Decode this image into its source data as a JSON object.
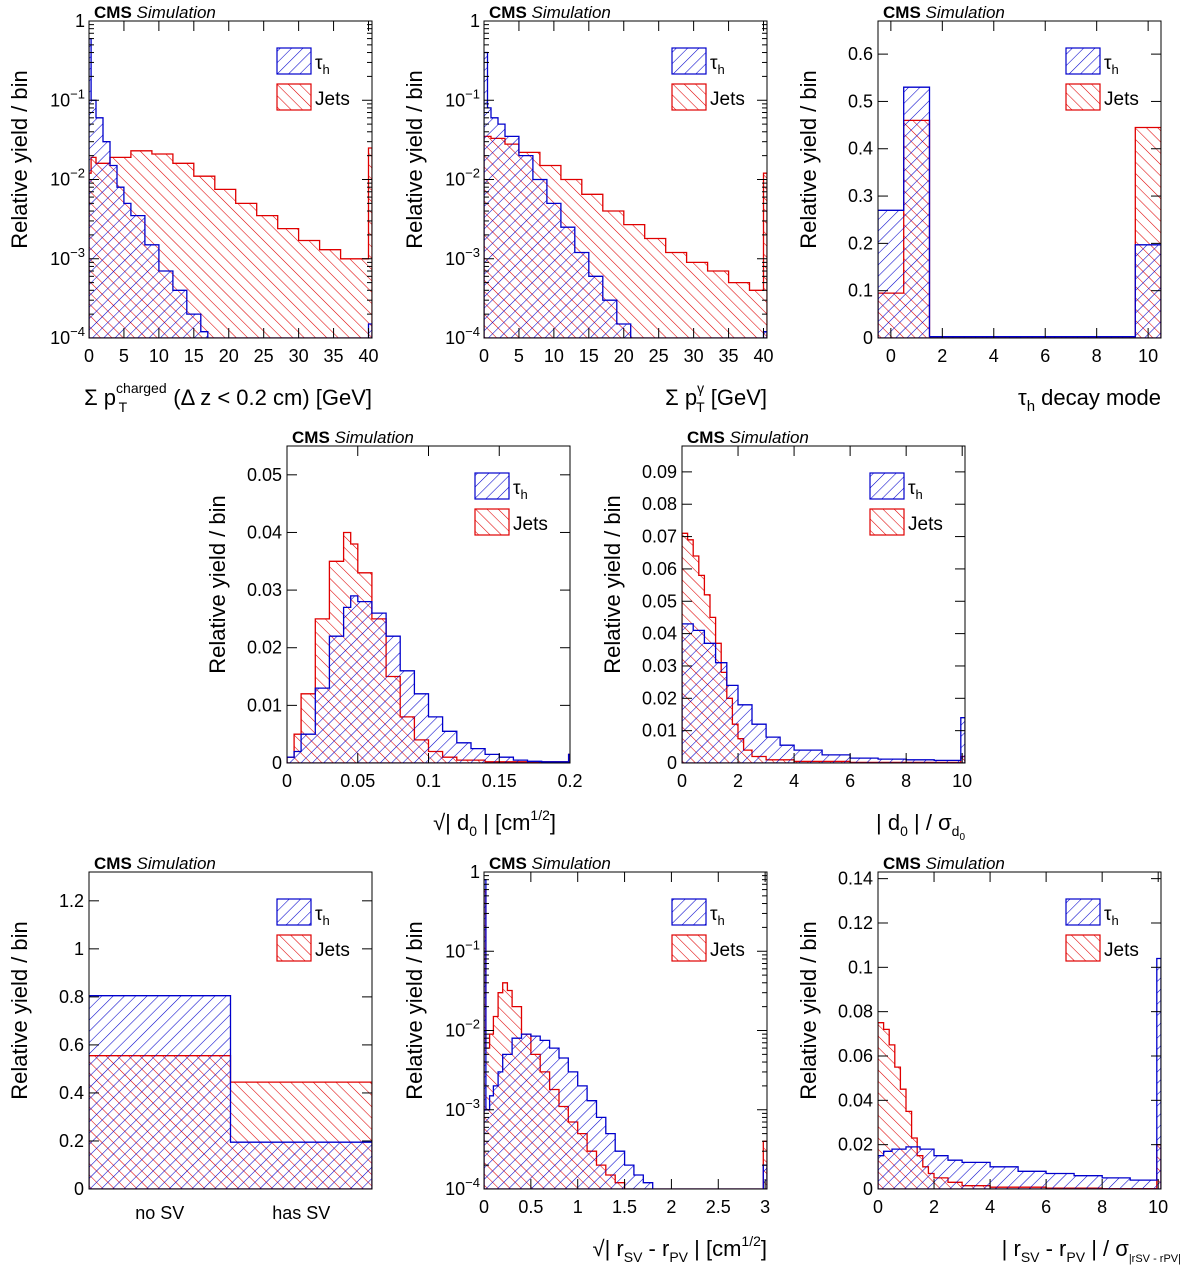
{
  "figure": {
    "cms_label": "CMS",
    "sim_label": "Simulation"
  },
  "legend": {
    "tau": "τh",
    "jets": "Jets"
  },
  "colors": {
    "tau": "#0000cc",
    "jets": "#e00000"
  },
  "chart_data": [
    {
      "id": "p1",
      "type": "histogram",
      "log": true,
      "ylabel": "Relative yield / bin",
      "xlabel": "Σ p_T^charged (Δ z < 0.2 cm) [GeV]",
      "xlim": [
        0,
        40.5
      ],
      "ylim": [
        0.0001,
        1
      ],
      "xticks": [
        0,
        5,
        10,
        15,
        20,
        25,
        30,
        35,
        40
      ],
      "yticks": [
        {
          "v": 0.0001,
          "b": "10",
          "e": "−4"
        },
        {
          "v": 0.001,
          "b": "10",
          "e": "−3"
        },
        {
          "v": 0.01,
          "b": "10",
          "e": "−2"
        },
        {
          "v": 0.1,
          "b": "10",
          "e": "−1"
        },
        {
          "v": 1,
          "b": "1",
          "e": ""
        }
      ],
      "tau": [
        [
          0,
          0.6
        ],
        [
          0.3,
          0.1
        ],
        [
          1,
          0.06
        ],
        [
          2,
          0.03
        ],
        [
          3,
          0.015
        ],
        [
          4,
          0.008
        ],
        [
          5,
          0.005
        ],
        [
          6,
          0.0035
        ],
        [
          8,
          0.0015
        ],
        [
          10,
          0.0007
        ],
        [
          12,
          0.0004
        ],
        [
          14,
          0.0002
        ],
        [
          16,
          0.00012
        ],
        [
          17,
          0.0001
        ],
        [
          40,
          0.00015
        ]
      ],
      "jets": [
        [
          0,
          0.012
        ],
        [
          0.3,
          0.019
        ],
        [
          1,
          0.016
        ],
        [
          3,
          0.019
        ],
        [
          6,
          0.023
        ],
        [
          9,
          0.021
        ],
        [
          12,
          0.016
        ],
        [
          15,
          0.011
        ],
        [
          18,
          0.0075
        ],
        [
          21,
          0.005
        ],
        [
          24,
          0.0035
        ],
        [
          27,
          0.0024
        ],
        [
          30,
          0.0017
        ],
        [
          33,
          0.0013
        ],
        [
          36,
          0.001
        ],
        [
          39,
          0.001
        ],
        [
          40,
          0.025
        ]
      ]
    },
    {
      "id": "p2",
      "type": "histogram",
      "log": true,
      "ylabel": "Relative yield / bin",
      "xlabel": "Σ p_T^γ [GeV]",
      "xlim": [
        0,
        40.5
      ],
      "ylim": [
        0.0001,
        1
      ],
      "xticks": [
        0,
        5,
        10,
        15,
        20,
        25,
        30,
        35,
        40
      ],
      "yticks": [
        {
          "v": 0.0001,
          "b": "10",
          "e": "−4"
        },
        {
          "v": 0.001,
          "b": "10",
          "e": "−3"
        },
        {
          "v": 0.01,
          "b": "10",
          "e": "−2"
        },
        {
          "v": 0.1,
          "b": "10",
          "e": "−1"
        },
        {
          "v": 1,
          "b": "1",
          "e": ""
        }
      ],
      "tau": [
        [
          0,
          0.4
        ],
        [
          0.5,
          0.08
        ],
        [
          1,
          0.06
        ],
        [
          2,
          0.05
        ],
        [
          3,
          0.035
        ],
        [
          5,
          0.02
        ],
        [
          7,
          0.01
        ],
        [
          9,
          0.005
        ],
        [
          11,
          0.0025
        ],
        [
          13,
          0.0012
        ],
        [
          15,
          0.0006
        ],
        [
          17,
          0.0003
        ],
        [
          19,
          0.00015
        ],
        [
          21,
          0.0001
        ],
        [
          40,
          0.00012
        ]
      ],
      "jets": [
        [
          0,
          0.035
        ],
        [
          1,
          0.033
        ],
        [
          3,
          0.028
        ],
        [
          5,
          0.022
        ],
        [
          8,
          0.015
        ],
        [
          11,
          0.01
        ],
        [
          14,
          0.0065
        ],
        [
          17,
          0.004
        ],
        [
          20,
          0.0027
        ],
        [
          23,
          0.0018
        ],
        [
          26,
          0.0012
        ],
        [
          29,
          0.0009
        ],
        [
          32,
          0.0007
        ],
        [
          35,
          0.0005
        ],
        [
          38,
          0.0004
        ],
        [
          40,
          0.012
        ]
      ]
    },
    {
      "id": "p3",
      "type": "histogram",
      "log": false,
      "ylabel": "Relative yield / bin",
      "xlabel": "τh decay mode",
      "xlim": [
        -0.5,
        10.5
      ],
      "ylim": [
        0,
        0.67
      ],
      "xticks": [
        0,
        2,
        4,
        6,
        8,
        10
      ],
      "yticks": [
        0,
        0.1,
        0.2,
        0.3,
        0.4,
        0.5,
        0.6
      ],
      "tau": [
        [
          -0.5,
          0.27
        ],
        [
          0.5,
          0.53
        ],
        [
          1.5,
          0.003
        ],
        [
          9.5,
          0.197
        ]
      ],
      "jets": [
        [
          -0.5,
          0.095
        ],
        [
          0.5,
          0.46
        ],
        [
          1.5,
          0.003
        ],
        [
          9.5,
          0.445
        ]
      ],
      "edge_end": 10.5
    },
    {
      "id": "p4",
      "type": "histogram",
      "log": false,
      "ylabel": "Relative yield / bin",
      "xlabel": "√| d0 | [cm1/2]",
      "xlim": [
        0,
        0.2
      ],
      "ylim": [
        0,
        0.055
      ],
      "xticks": [
        0,
        0.05,
        0.1,
        0.15,
        0.2
      ],
      "xticklabels": [
        "0",
        "0.05",
        "0.1",
        "0.15",
        "0.2"
      ],
      "yticks": [
        0,
        0.01,
        0.02,
        0.03,
        0.04,
        0.05
      ],
      "tau": [
        [
          0,
          0.001
        ],
        [
          0.005,
          0.002
        ],
        [
          0.01,
          0.005
        ],
        [
          0.02,
          0.013
        ],
        [
          0.03,
          0.022
        ],
        [
          0.04,
          0.027
        ],
        [
          0.045,
          0.029
        ],
        [
          0.05,
          0.028
        ],
        [
          0.06,
          0.026
        ],
        [
          0.07,
          0.022
        ],
        [
          0.08,
          0.016
        ],
        [
          0.09,
          0.012
        ],
        [
          0.1,
          0.008
        ],
        [
          0.11,
          0.0055
        ],
        [
          0.12,
          0.0035
        ],
        [
          0.13,
          0.0025
        ],
        [
          0.14,
          0.0015
        ],
        [
          0.15,
          0.001
        ],
        [
          0.16,
          0.0005
        ],
        [
          0.17,
          0.0003
        ],
        [
          0.18,
          0.0002
        ],
        [
          0.199,
          0.0015
        ]
      ],
      "jets": [
        [
          0,
          0.001
        ],
        [
          0.005,
          0.005
        ],
        [
          0.01,
          0.012
        ],
        [
          0.02,
          0.025
        ],
        [
          0.03,
          0.035
        ],
        [
          0.04,
          0.04
        ],
        [
          0.045,
          0.038
        ],
        [
          0.05,
          0.033
        ],
        [
          0.06,
          0.025
        ],
        [
          0.07,
          0.015
        ],
        [
          0.08,
          0.008
        ],
        [
          0.09,
          0.004
        ],
        [
          0.1,
          0.002
        ],
        [
          0.11,
          0.001
        ],
        [
          0.12,
          0.0005
        ],
        [
          0.14,
          0.0002
        ],
        [
          0.199,
          0.0015
        ]
      ]
    },
    {
      "id": "p5",
      "type": "histogram",
      "log": false,
      "ylabel": "Relative yield / bin",
      "xlabel": "| d0 | / σd0",
      "xlim": [
        0,
        10.1
      ],
      "ylim": [
        0,
        0.098
      ],
      "xticks": [
        0,
        2,
        4,
        6,
        8,
        10
      ],
      "yticks": [
        0,
        0.01,
        0.02,
        0.03,
        0.04,
        0.05,
        0.06,
        0.07,
        0.08,
        0.09
      ],
      "tau": [
        [
          0,
          0.043
        ],
        [
          0.4,
          0.041
        ],
        [
          0.8,
          0.037
        ],
        [
          1.2,
          0.031
        ],
        [
          1.6,
          0.024
        ],
        [
          2,
          0.018
        ],
        [
          2.5,
          0.012
        ],
        [
          3,
          0.008
        ],
        [
          3.5,
          0.0055
        ],
        [
          4,
          0.004
        ],
        [
          5,
          0.0025
        ],
        [
          6,
          0.0015
        ],
        [
          7,
          0.0012
        ],
        [
          8,
          0.001
        ],
        [
          9,
          0.0008
        ],
        [
          9.95,
          0.014
        ]
      ],
      "jets": [
        [
          0,
          0.071
        ],
        [
          0.2,
          0.069
        ],
        [
          0.4,
          0.064
        ],
        [
          0.6,
          0.058
        ],
        [
          0.8,
          0.052
        ],
        [
          1,
          0.045
        ],
        [
          1.2,
          0.037
        ],
        [
          1.4,
          0.028
        ],
        [
          1.6,
          0.02
        ],
        [
          1.8,
          0.012
        ],
        [
          2,
          0.0075
        ],
        [
          2.2,
          0.004
        ],
        [
          2.5,
          0.002
        ],
        [
          3,
          0.001
        ],
        [
          4,
          0.0005
        ],
        [
          6,
          0.0002
        ],
        [
          9.95,
          0.002
        ]
      ]
    },
    {
      "id": "p6",
      "type": "histogram",
      "log": false,
      "ylabel": "Relative yield / bin",
      "xlabel": "",
      "xlim": [
        0,
        2
      ],
      "ylim": [
        0,
        1.32
      ],
      "categories": [
        "no SV",
        "has SV"
      ],
      "yticks": [
        0,
        0.2,
        0.4,
        0.6,
        0.8,
        1,
        1.2
      ],
      "tau": [
        [
          0,
          0.805
        ],
        [
          1,
          0.195
        ]
      ],
      "jets": [
        [
          0,
          0.555
        ],
        [
          1,
          0.445
        ]
      ],
      "edge_end": 2
    },
    {
      "id": "p7",
      "type": "histogram",
      "log": true,
      "ylabel": "Relative yield / bin",
      "xlabel": "√| rSV - rPV | [cm1/2]",
      "xlim": [
        0,
        3.02
      ],
      "ylim": [
        0.0001,
        1
      ],
      "xticks": [
        0,
        0.5,
        1,
        1.5,
        2,
        2.5,
        3
      ],
      "xticklabels": [
        "0",
        "0.5",
        "1",
        "1.5",
        "2",
        "2.5",
        "3"
      ],
      "yticks": [
        {
          "v": 0.0001,
          "b": "10",
          "e": "−4"
        },
        {
          "v": 0.001,
          "b": "10",
          "e": "−3"
        },
        {
          "v": 0.01,
          "b": "10",
          "e": "−2"
        },
        {
          "v": 0.1,
          "b": "10",
          "e": "−1"
        },
        {
          "v": 1,
          "b": "1",
          "e": ""
        }
      ],
      "tau": [
        [
          0,
          0.8
        ],
        [
          0.02,
          0.001
        ],
        [
          0.06,
          0.0015
        ],
        [
          0.1,
          0.002
        ],
        [
          0.15,
          0.003
        ],
        [
          0.2,
          0.005
        ],
        [
          0.3,
          0.008
        ],
        [
          0.4,
          0.009
        ],
        [
          0.5,
          0.0085
        ],
        [
          0.6,
          0.0075
        ],
        [
          0.7,
          0.006
        ],
        [
          0.8,
          0.0045
        ],
        [
          0.9,
          0.003
        ],
        [
          1,
          0.002
        ],
        [
          1.1,
          0.0013
        ],
        [
          1.2,
          0.0008
        ],
        [
          1.3,
          0.0005
        ],
        [
          1.4,
          0.0003
        ],
        [
          1.5,
          0.0002
        ],
        [
          1.6,
          0.00015
        ],
        [
          1.7,
          0.00012
        ],
        [
          1.8,
          0.0001
        ],
        [
          2.98,
          0.0002
        ]
      ],
      "jets": [
        [
          0,
          0.6
        ],
        [
          0.02,
          0.006
        ],
        [
          0.06,
          0.009
        ],
        [
          0.1,
          0.015
        ],
        [
          0.15,
          0.03
        ],
        [
          0.2,
          0.04
        ],
        [
          0.25,
          0.032
        ],
        [
          0.3,
          0.02
        ],
        [
          0.4,
          0.009
        ],
        [
          0.5,
          0.005
        ],
        [
          0.6,
          0.003
        ],
        [
          0.7,
          0.0018
        ],
        [
          0.8,
          0.0011
        ],
        [
          0.9,
          0.0007
        ],
        [
          1,
          0.0005
        ],
        [
          1.1,
          0.0003
        ],
        [
          1.2,
          0.0002
        ],
        [
          1.3,
          0.00015
        ],
        [
          1.4,
          0.00012
        ],
        [
          1.5,
          0.0001
        ],
        [
          2.98,
          0.0004
        ]
      ]
    },
    {
      "id": "p8",
      "type": "histogram",
      "log": false,
      "ylabel": "Relative yield / bin",
      "xlabel": "| rSV - rPV | / σ|rSV - rPV|",
      "xlim": [
        0,
        10.1
      ],
      "ylim": [
        0,
        0.143
      ],
      "xticks": [
        0,
        2,
        4,
        6,
        8,
        10
      ],
      "yticks": [
        0,
        0.02,
        0.04,
        0.06,
        0.08,
        0.1,
        0.12,
        0.14
      ],
      "tau": [
        [
          0,
          0.015
        ],
        [
          0.2,
          0.017
        ],
        [
          0.5,
          0.018
        ],
        [
          1,
          0.019
        ],
        [
          1.5,
          0.018
        ],
        [
          2,
          0.015
        ],
        [
          2.5,
          0.013
        ],
        [
          3,
          0.012
        ],
        [
          4,
          0.01
        ],
        [
          5,
          0.008
        ],
        [
          6,
          0.007
        ],
        [
          7,
          0.006
        ],
        [
          8,
          0.005
        ],
        [
          9,
          0.004
        ],
        [
          9.95,
          0.104
        ]
      ],
      "jets": [
        [
          0,
          0.075
        ],
        [
          0.2,
          0.072
        ],
        [
          0.4,
          0.065
        ],
        [
          0.6,
          0.055
        ],
        [
          0.8,
          0.045
        ],
        [
          1,
          0.035
        ],
        [
          1.2,
          0.023
        ],
        [
          1.4,
          0.015
        ],
        [
          1.6,
          0.01
        ],
        [
          1.8,
          0.007
        ],
        [
          2,
          0.005
        ],
        [
          2.5,
          0.003
        ],
        [
          3,
          0.0015
        ],
        [
          4,
          0.0008
        ],
        [
          6,
          0.0004
        ],
        [
          8,
          0.0002
        ],
        [
          9.95,
          0.02
        ]
      ]
    }
  ]
}
